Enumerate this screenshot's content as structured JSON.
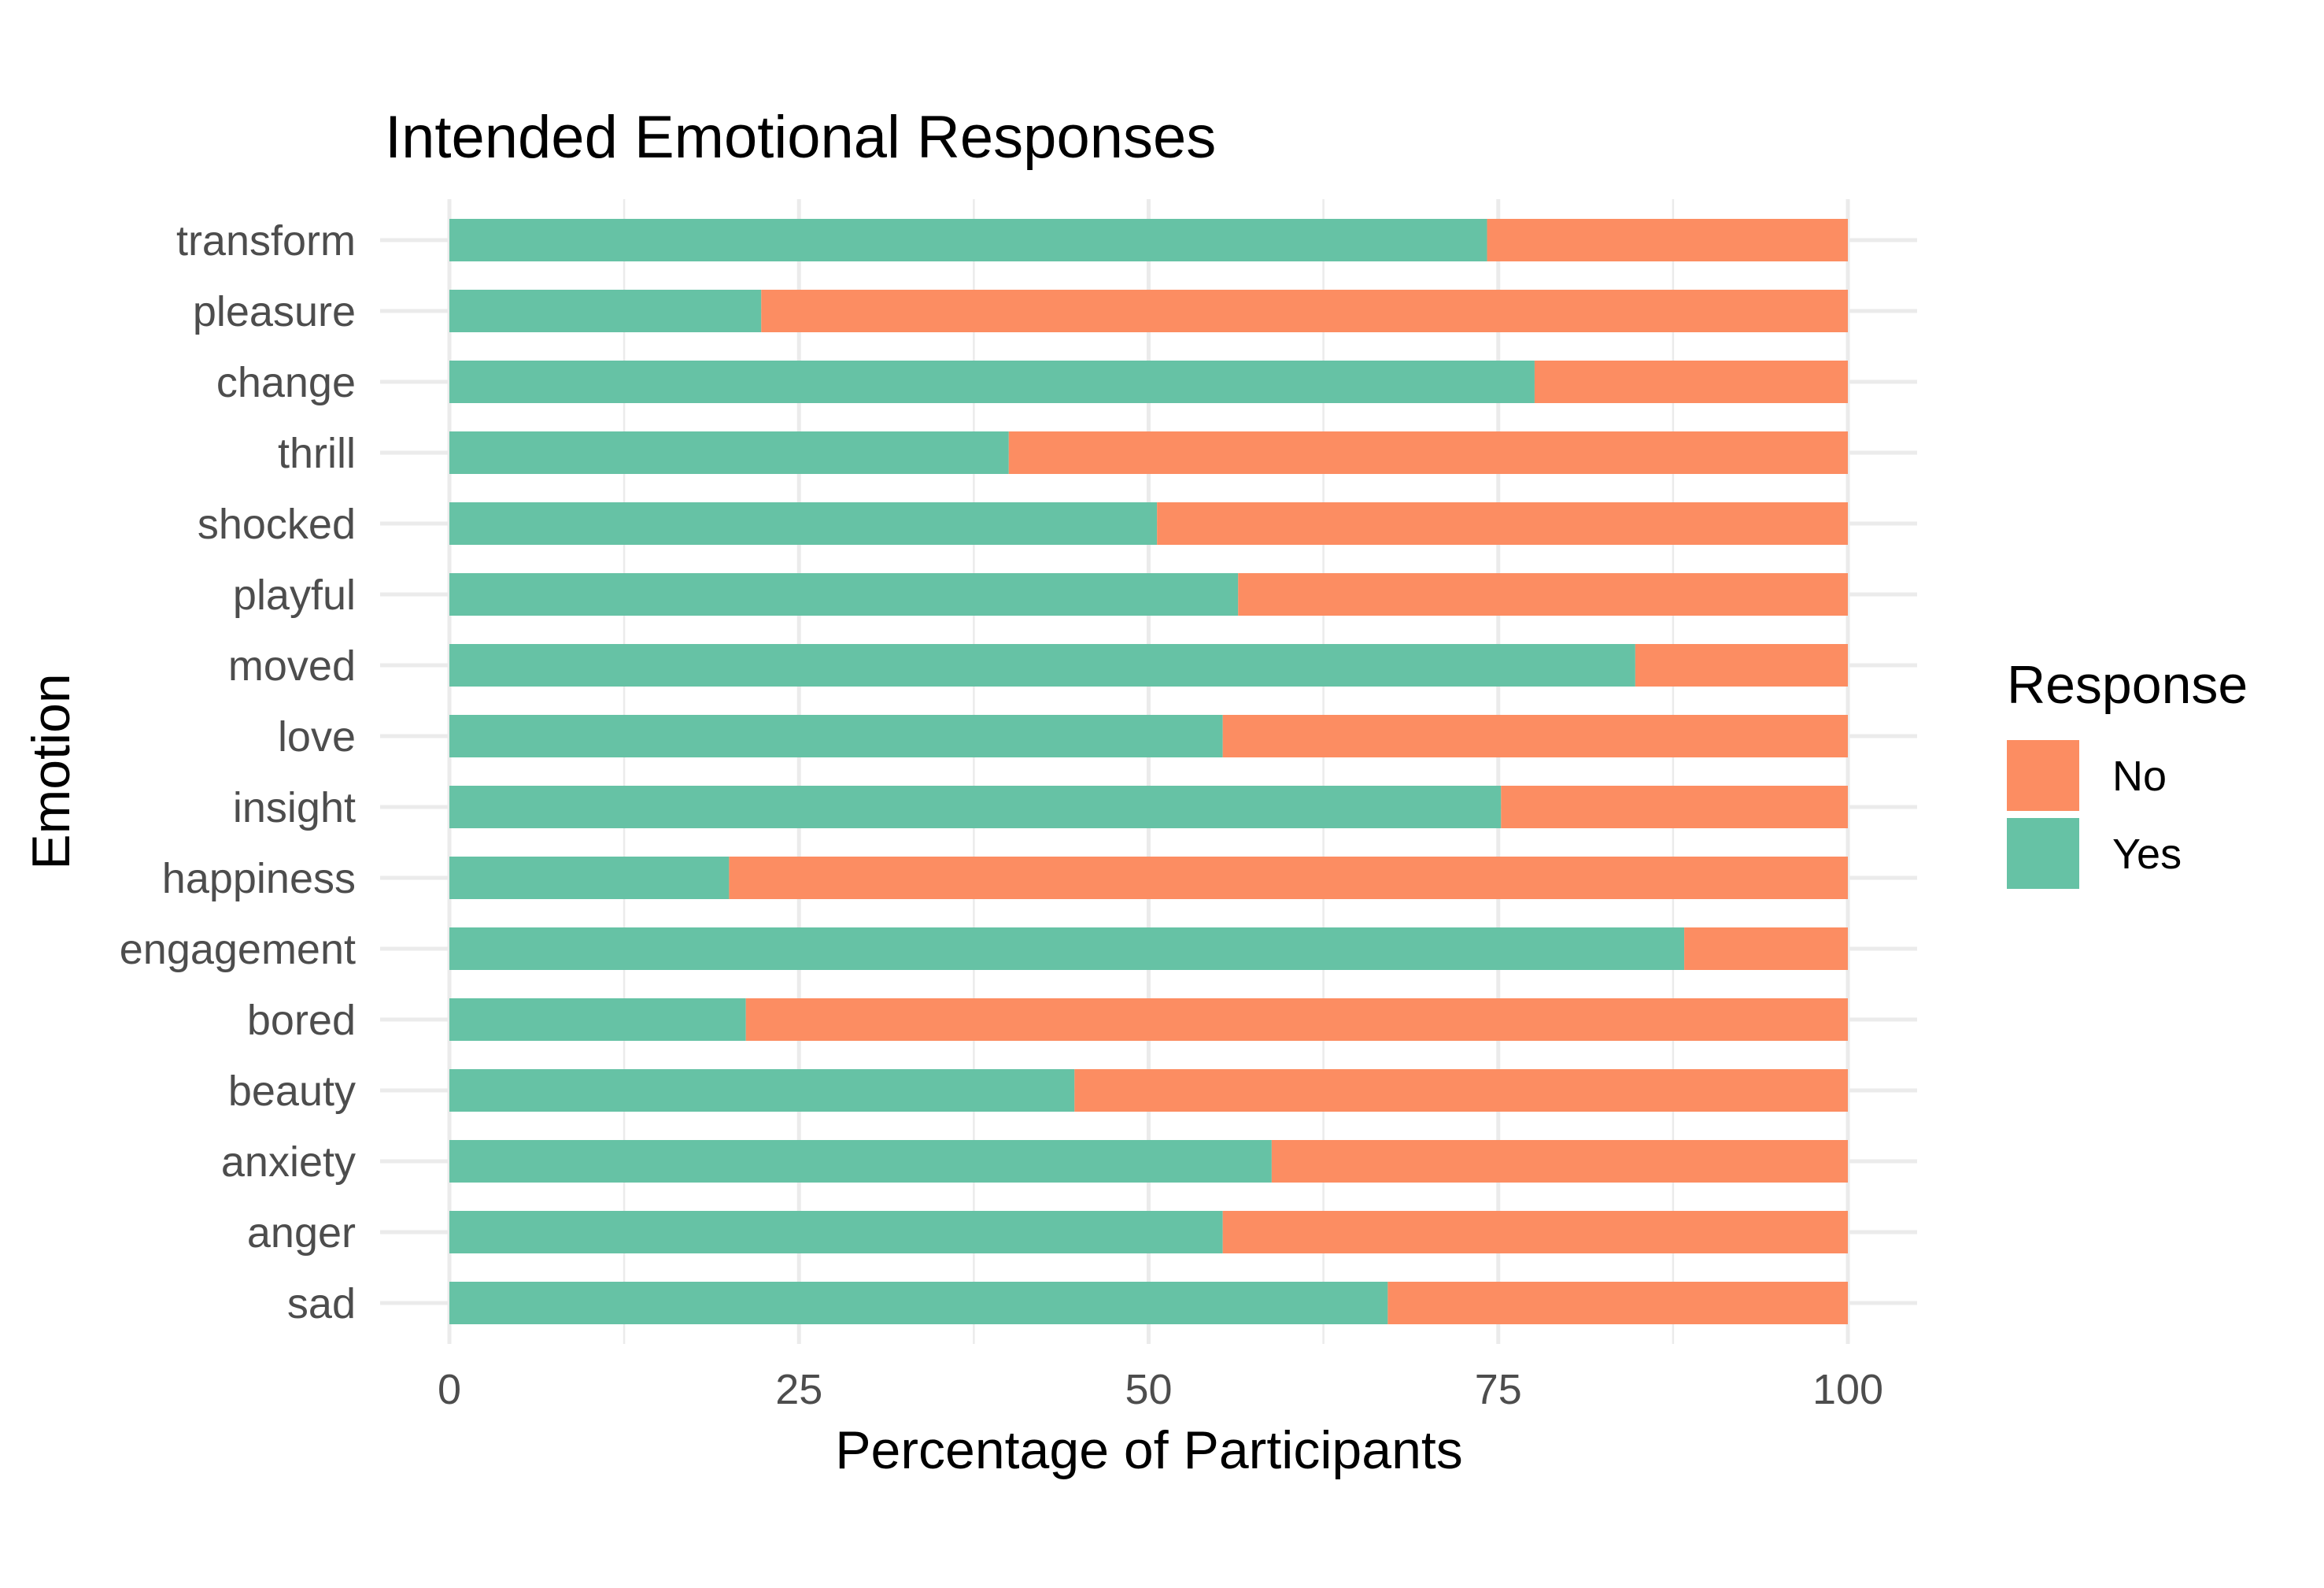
{
  "chart_data": {
    "type": "bar",
    "orientation": "horizontal",
    "stacked": true,
    "title": "Intended Emotional Responses",
    "xlabel": "Percentage of Participants",
    "ylabel": "Emotion",
    "xlim": [
      0,
      100
    ],
    "x_ticks": [
      0,
      25,
      50,
      75,
      100
    ],
    "x_tick_labels": [
      "0",
      "25",
      "50",
      "75",
      "100"
    ],
    "grid": true,
    "categories": [
      "transform",
      "pleasure",
      "change",
      "thrill",
      "shocked",
      "playful",
      "moved",
      "love",
      "insight",
      "happiness",
      "engagement",
      "bored",
      "beauty",
      "anxiety",
      "anger",
      "sad"
    ],
    "series": [
      {
        "name": "Yes",
        "color": "#66c2a5",
        "values": [
          74.2,
          22.3,
          77.6,
          40.0,
          50.6,
          56.4,
          84.8,
          55.3,
          75.2,
          20.0,
          88.3,
          21.2,
          44.7,
          58.8,
          55.3,
          67.1
        ]
      },
      {
        "name": "No",
        "color": "#fc8d62",
        "values": [
          25.8,
          77.7,
          22.4,
          60.0,
          49.4,
          43.6,
          15.2,
          44.7,
          24.8,
          80.0,
          11.7,
          78.8,
          55.3,
          41.2,
          44.7,
          32.9
        ]
      }
    ],
    "legend": {
      "title": "Response",
      "position": "right",
      "entries": [
        {
          "label": "No",
          "color": "#fc8d62"
        },
        {
          "label": "Yes",
          "color": "#66c2a5"
        }
      ]
    }
  }
}
